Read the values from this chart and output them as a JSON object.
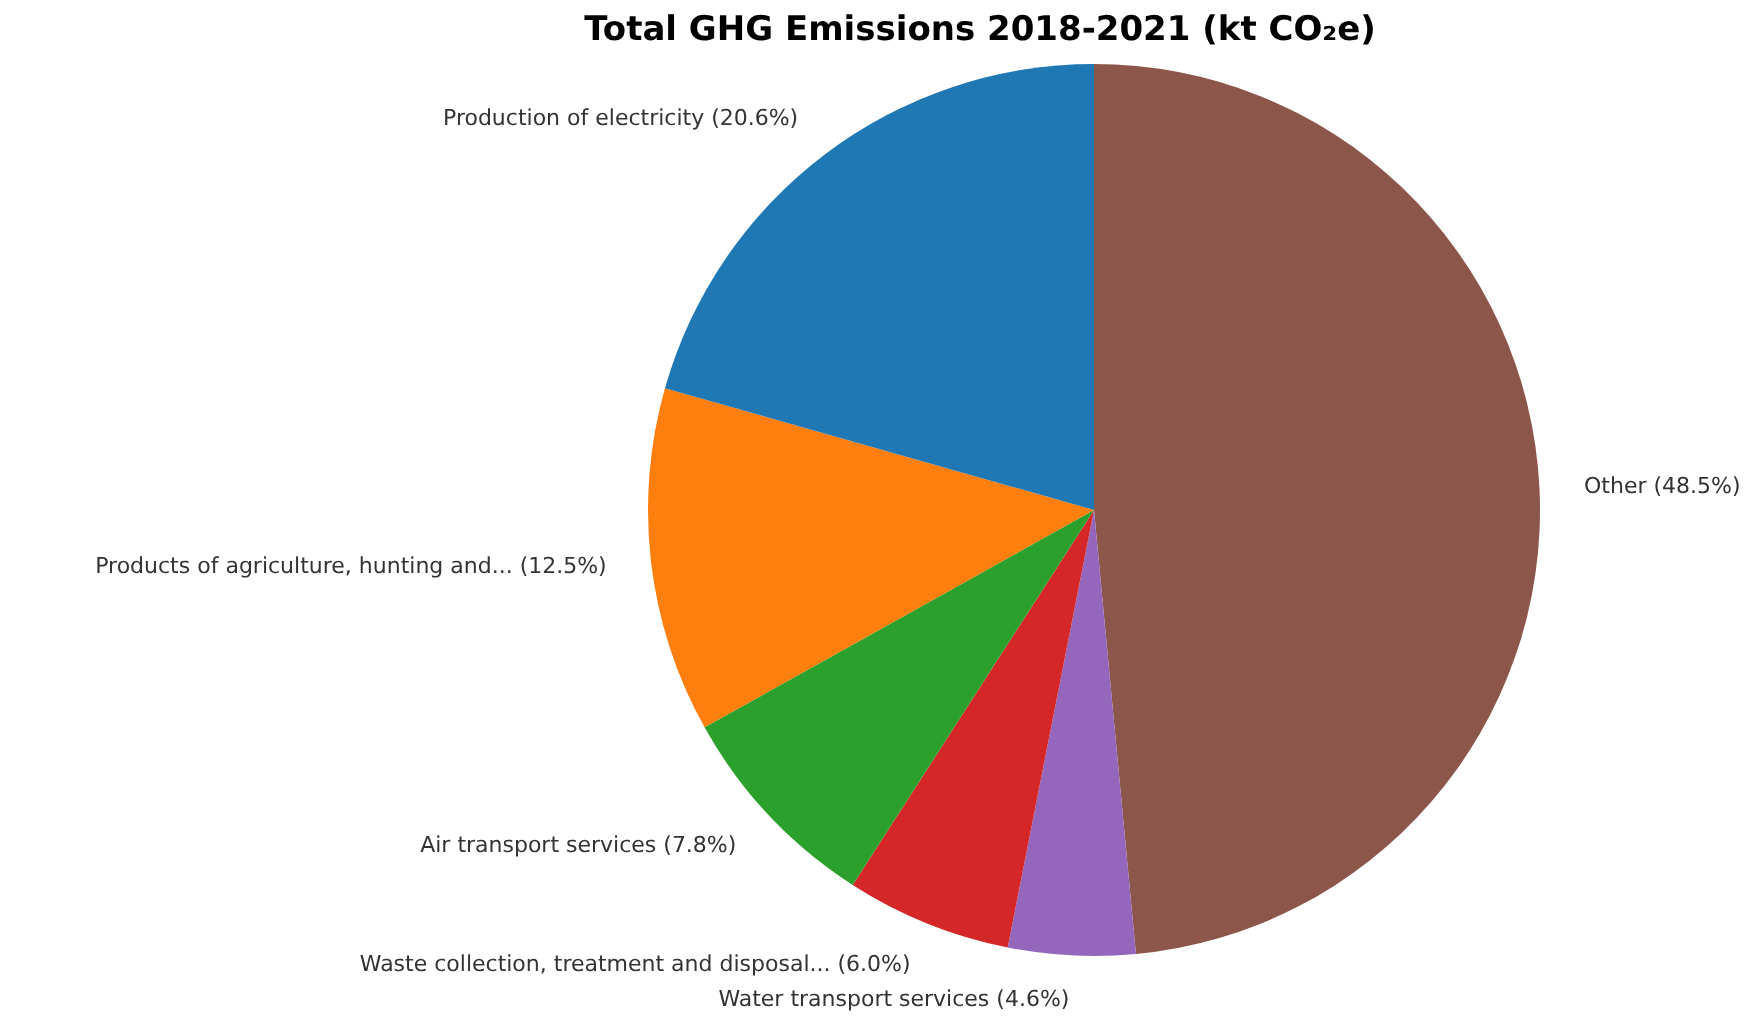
{
  "chart_data": {
    "type": "pie",
    "title": "Total GHG Emissions 2018-2021 (kt CO₂e)",
    "categories": [
      "Other (48.5%)",
      "Water transport services (4.6%)",
      "Waste collection, treatment and disposal... (6.0%)",
      "Air transport services (7.8%)",
      "Products of agriculture, hunting and... (12.5%)",
      "Production of electricity (20.6%)"
    ],
    "values": [
      48.5,
      4.6,
      6.0,
      7.8,
      12.5,
      20.6
    ],
    "colors": [
      "#8c564b",
      "#9467bd",
      "#d62728",
      "#2ca02c",
      "#ff7f0e",
      "#1f77b4"
    ]
  }
}
